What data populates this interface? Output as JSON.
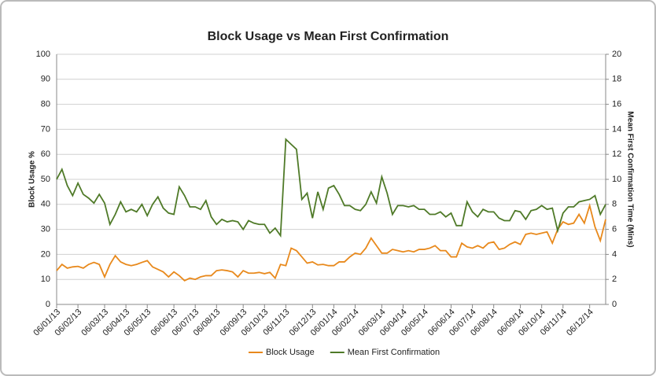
{
  "chart_data": {
    "type": "line",
    "title": "Block Usage vs Mean First Confirmation",
    "y_label": "Block Usage %",
    "y2_label": "Mean First Confirmation Time (Mins)",
    "categories": [
      "06/01/13",
      null,
      null,
      null,
      "06/02/13",
      null,
      null,
      null,
      null,
      "06/03/13",
      null,
      null,
      null,
      "06/04/13",
      null,
      null,
      null,
      "06/05/13",
      null,
      null,
      null,
      null,
      "06/06/13",
      null,
      null,
      null,
      "06/07/13",
      null,
      null,
      null,
      "06/08/13",
      null,
      null,
      null,
      null,
      "06/09/13",
      null,
      null,
      null,
      "06/10/13",
      null,
      null,
      null,
      "06/11/13",
      null,
      null,
      null,
      null,
      "06/12/13",
      null,
      null,
      null,
      "06/01/14",
      null,
      null,
      null,
      "06/02/14",
      null,
      null,
      null,
      null,
      "06/03/14",
      null,
      null,
      null,
      "06/04/14",
      null,
      null,
      null,
      "06/05/14",
      null,
      null,
      null,
      null,
      "06/06/14",
      null,
      null,
      null,
      "06/07/14",
      null,
      null,
      null,
      "06/08/14",
      null,
      null,
      null,
      null,
      "06/09/14",
      null,
      null,
      null,
      "06/10/14",
      null,
      null,
      null,
      "06/11/14",
      null,
      null,
      null,
      null,
      "06/12/14",
      null,
      null,
      null
    ],
    "series": [
      {
        "name": "Block Usage",
        "color": "#e8891c",
        "axis": "y",
        "values": [
          13.5,
          16,
          14.5,
          15,
          15.2,
          14.5,
          16,
          16.8,
          16,
          11,
          16,
          19.5,
          17,
          16,
          15.5,
          16,
          16.8,
          17.5,
          15,
          14,
          13,
          11,
          13,
          11.5,
          9.5,
          10.5,
          10,
          11,
          11.5,
          11.5,
          13.5,
          13.8,
          13.5,
          13,
          11,
          13.5,
          12.5,
          12.5,
          12.8,
          12.3,
          12.8,
          10.5,
          16,
          15.5,
          22.5,
          21.5,
          19,
          16.5,
          17,
          15.8,
          16,
          15.5,
          15.5,
          17,
          17,
          19,
          20.5,
          20,
          22.5,
          26.5,
          23.5,
          20.5,
          20.5,
          22,
          21.5,
          21,
          21.5,
          21,
          22,
          22,
          22.5,
          23.5,
          21.5,
          21.5,
          19,
          19,
          24.5,
          23,
          22.5,
          23.5,
          22.5,
          24.5,
          25,
          22,
          22.5,
          24,
          25,
          24,
          28,
          28.5,
          28,
          28.5,
          29,
          24.5,
          30,
          33,
          32,
          32.5,
          36,
          32.5,
          39.5,
          31,
          25.5,
          34
        ]
      },
      {
        "name": "Mean First Confirmation",
        "color": "#4f7a28",
        "axis": "y2",
        "values": [
          10,
          10.8,
          9.5,
          8.7,
          9.7,
          8.8,
          8.5,
          8.1,
          8.8,
          8.1,
          6.4,
          7.2,
          8.2,
          7.4,
          7.6,
          7.4,
          8.0,
          7.1,
          8.0,
          8.6,
          7.7,
          7.3,
          7.2,
          9.4,
          8.7,
          7.8,
          7.8,
          7.6,
          8.3,
          7.0,
          6.4,
          6.8,
          6.6,
          6.7,
          6.6,
          6.0,
          6.7,
          6.5,
          6.4,
          6.4,
          5.7,
          6.1,
          5.5,
          13.2,
          12.8,
          12.4,
          8.4,
          8.9,
          6.9,
          9.0,
          7.6,
          9.3,
          9.5,
          8.8,
          7.9,
          7.9,
          7.6,
          7.5,
          8.0,
          9.0,
          8.1,
          10.2,
          8.9,
          7.2,
          7.9,
          7.9,
          7.8,
          7.9,
          7.6,
          7.6,
          7.2,
          7.2,
          7.4,
          7.0,
          7.3,
          6.3,
          6.3,
          8.2,
          7.4,
          7.0,
          7.6,
          7.4,
          7.4,
          6.9,
          6.7,
          6.7,
          7.5,
          7.4,
          6.8,
          7.5,
          7.6,
          7.9,
          7.6,
          7.7,
          5.9,
          7.3,
          7.8,
          7.8,
          8.2,
          8.3,
          8.4,
          8.7,
          7.2,
          8.0
        ]
      }
    ],
    "ylim": [
      0,
      100
    ],
    "yticks": [
      0,
      10,
      20,
      30,
      40,
      50,
      60,
      70,
      80,
      90,
      100
    ],
    "y2lim": [
      0,
      20
    ],
    "y2ticks": [
      0,
      2,
      4,
      6,
      8,
      10,
      12,
      14,
      16,
      18,
      20
    ],
    "grid": true,
    "legend": "bottom"
  }
}
